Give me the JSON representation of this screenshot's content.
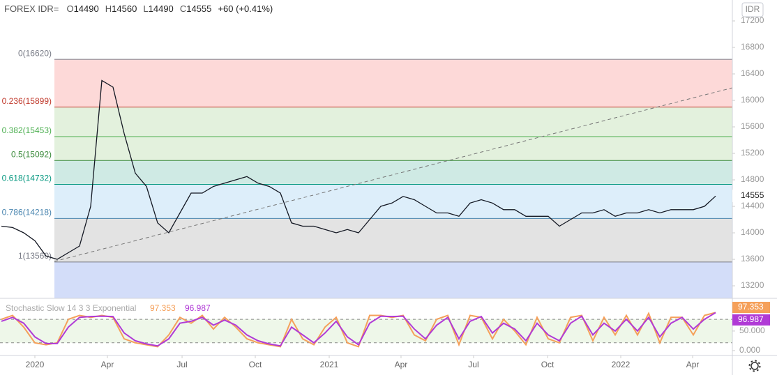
{
  "header": {
    "symbol": "FOREX IDR=",
    "o_label": "O",
    "open": 14490,
    "h_label": "H",
    "high": 14560,
    "l_label": "L",
    "low": 14490,
    "c_label": "C",
    "close": 14555,
    "change": "+60 (+0.41%)",
    "currency": "IDR"
  },
  "chart_data": [
    {
      "type": "line",
      "name": "price",
      "color": "#131722",
      "values": [
        14100,
        14080,
        14000,
        13880,
        13650,
        13600,
        13700,
        13800,
        14400,
        16300,
        16200,
        15500,
        14900,
        14700,
        14150,
        14000,
        14300,
        14600,
        14600,
        14700,
        14750,
        14800,
        14850,
        14750,
        14700,
        14600,
        14150,
        14100,
        14100,
        14050,
        14000,
        14050,
        14000,
        14200,
        14400,
        14450,
        14550,
        14500,
        14400,
        14300,
        14300,
        14250,
        14450,
        14500,
        14450,
        14350,
        14350,
        14250,
        14250,
        14250,
        14100,
        14200,
        14300,
        14300,
        14350,
        14250,
        14300,
        14300,
        14350,
        14300,
        14350,
        14350,
        14350,
        14400,
        14555
      ],
      "xlim": [
        -0.125,
        65.5
      ],
      "xticks": [
        {
          "value": 3,
          "label": "2020"
        },
        {
          "value": 9.5,
          "label": "Apr"
        },
        {
          "value": 16.19,
          "label": "Jul"
        },
        {
          "value": 22.75,
          "label": "Oct"
        },
        {
          "value": 29.375,
          "label": "2021"
        },
        {
          "value": 35.81,
          "label": "Apr"
        },
        {
          "value": 42.31,
          "label": "Jul"
        },
        {
          "value": 48.94,
          "label": "Oct"
        },
        {
          "value": 55.5,
          "label": "2022"
        },
        {
          "value": 61.94,
          "label": "Apr"
        }
      ],
      "ylim": [
        13011,
        17516
      ],
      "yticks": [
        13200,
        13600,
        14000,
        14400,
        14800,
        15200,
        15600,
        16000,
        16400,
        16800,
        17200
      ],
      "fib_levels": [
        {
          "label": "0(16620)",
          "value": 16620,
          "color": "#787b86",
          "fill": "#fdd9d8"
        },
        {
          "label": "0.236(15899)",
          "value": 15899,
          "color": "#c0392b",
          "fill": "#e3f1dd"
        },
        {
          "label": "0.382(15453)",
          "value": 15453,
          "color": "#4caf50",
          "fill": "#e3f1dd"
        },
        {
          "label": "0.5(15092)",
          "value": 15092,
          "color": "#3a8a3a",
          "fill": "#cfeae4"
        },
        {
          "label": "0.618(14732)",
          "value": 14732,
          "color": "#089981",
          "fill": "#ddeefa"
        },
        {
          "label": "0.786(14218)",
          "value": 14218,
          "color": "#4a86b0",
          "fill": "#e3e3e3"
        },
        {
          "label": "1(13560)",
          "value": 13560,
          "color": "#787b86",
          "fill": "#d3ddf9"
        }
      ]
    },
    {
      "type": "stochastic",
      "title": "Stochastic Slow 14 3 3 Exponential",
      "series": [
        {
          "name": "K",
          "color": "#f5a05a",
          "values": [
            80,
            90,
            60,
            20,
            15,
            20,
            80,
            90,
            85,
            90,
            85,
            30,
            20,
            15,
            10,
            40,
            85,
            70,
            90,
            55,
            85,
            60,
            30,
            20,
            15,
            10,
            80,
            30,
            15,
            60,
            85,
            20,
            10,
            90,
            90,
            85,
            90,
            40,
            25,
            80,
            90,
            15,
            90,
            85,
            30,
            80,
            50,
            15,
            85,
            30,
            20,
            85,
            90,
            25,
            85,
            40,
            90,
            40,
            95,
            20,
            85,
            85,
            40,
            90,
            97.353
          ]
        },
        {
          "name": "D",
          "color": "#b03ad6",
          "values": [
            75,
            85,
            70,
            35,
            18,
            18,
            60,
            85,
            87,
            88,
            87,
            45,
            25,
            17,
            12,
            30,
            70,
            75,
            85,
            65,
            78,
            65,
            40,
            25,
            17,
            12,
            60,
            40,
            20,
            45,
            75,
            35,
            15,
            70,
            88,
            87,
            88,
            55,
            30,
            65,
            85,
            30,
            75,
            87,
            45,
            70,
            55,
            25,
            70,
            40,
            25,
            70,
            88,
            40,
            70,
            50,
            80,
            50,
            85,
            35,
            70,
            85,
            55,
            80,
            96.987
          ]
        }
      ],
      "ylim": [
        -12.5,
        130
      ],
      "yticks": [
        {
          "value": 0,
          "label": "0.000"
        },
        {
          "value": 50,
          "label": "50.000"
        }
      ],
      "bands": [
        20,
        80
      ]
    }
  ]
}
